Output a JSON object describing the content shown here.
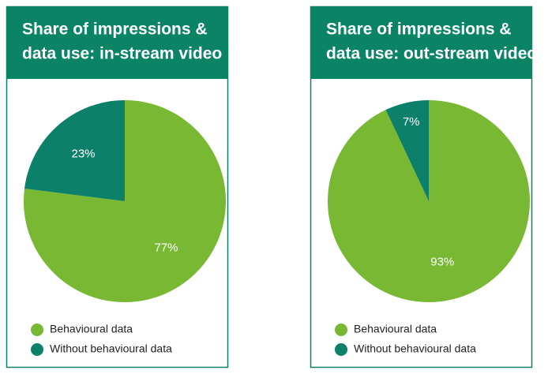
{
  "chart_data": [
    {
      "type": "pie",
      "title": [
        "Share of impressions &",
        "data use: in-stream video"
      ],
      "categories": [
        "Behavioural data",
        "Without behavioural data"
      ],
      "values": [
        77,
        23
      ],
      "value_labels": [
        "77%",
        "23%"
      ],
      "colors": [
        "#78b833",
        "#0c8069"
      ]
    },
    {
      "type": "pie",
      "title": [
        "Share of impressions &",
        "data use: out-stream video"
      ],
      "categories": [
        "Behavioural data",
        "Without behavioural data"
      ],
      "values": [
        93,
        7
      ],
      "value_labels": [
        "93%",
        "7%"
      ],
      "colors": [
        "#78b833",
        "#0c8069"
      ]
    }
  ]
}
